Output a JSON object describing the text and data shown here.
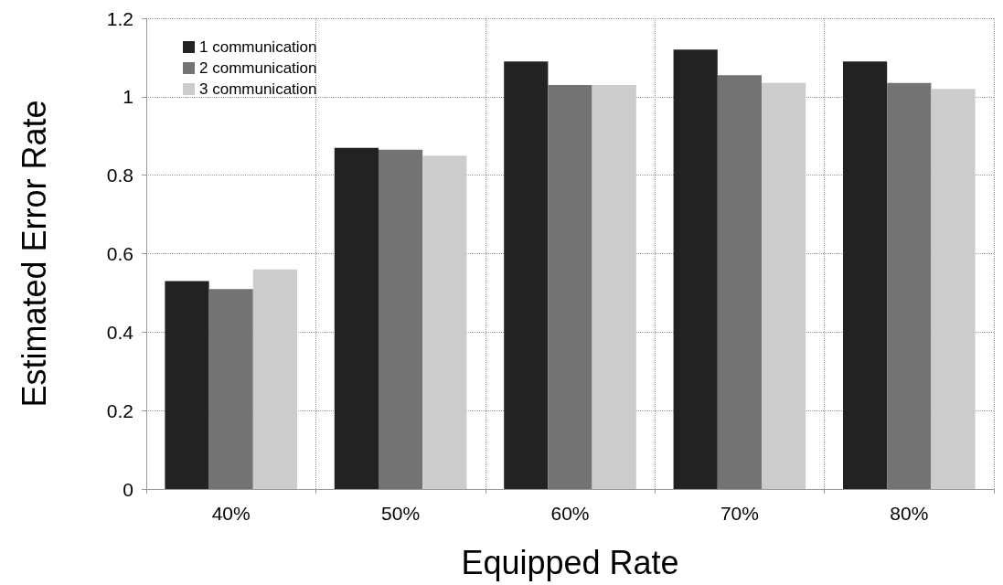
{
  "chart_data": {
    "type": "bar",
    "xlabel": "Equipped Rate",
    "ylabel": "Estimated Error Rate",
    "categories": [
      "40%",
      "50%",
      "60%",
      "70%",
      "80%"
    ],
    "series": [
      {
        "name": "1 communication",
        "color": "#222222",
        "values": [
          0.53,
          0.87,
          1.09,
          1.12,
          1.09
        ]
      },
      {
        "name": "2 communication",
        "color": "#737373",
        "values": [
          0.51,
          0.865,
          1.03,
          1.055,
          1.035
        ]
      },
      {
        "name": "3 communication",
        "color": "#cccccc",
        "values": [
          0.56,
          0.85,
          1.03,
          1.035,
          1.02
        ]
      }
    ],
    "ylim": [
      0,
      1.2
    ],
    "yticks": [
      0,
      0.2,
      0.4,
      0.6,
      0.8,
      1,
      1.2
    ],
    "grid": true,
    "legend": "top left"
  }
}
